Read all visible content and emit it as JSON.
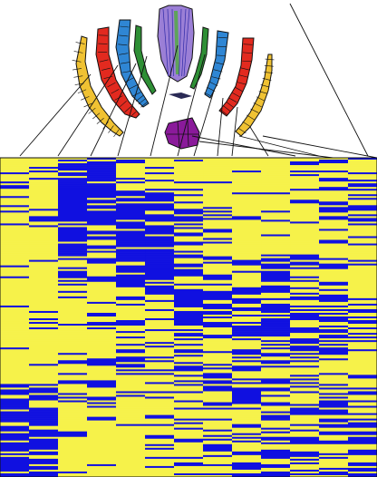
{
  "colors": {
    "background": "#ffffff",
    "outline": "#111111",
    "heat_high": "#1010e0",
    "heat_low": "#f6f24a",
    "stele": "#9b7fd6",
    "stele_center": "#5fa35a",
    "stele_edge": "#2f2aa8",
    "endodermis": "#2e8f35",
    "cortex": "#2f86d4",
    "epidermis": "#e22a1f",
    "root_cap": "#f0c233",
    "quiescent_center": "#8a1a9a",
    "qc_marker": "#2a2a55"
  },
  "heatmap": {
    "columns": 13,
    "rows": 175,
    "column_patterns": [
      {
        "blocks": [
          [
            0.0,
            0.22,
            0.12
          ],
          [
            0.22,
            0.45,
            0.1
          ],
          [
            0.45,
            0.7,
            0.05
          ],
          [
            0.7,
            0.82,
            0.75
          ],
          [
            0.82,
            1.0,
            0.8
          ]
        ]
      },
      {
        "blocks": [
          [
            0.0,
            0.22,
            0.1
          ],
          [
            0.22,
            0.45,
            0.08
          ],
          [
            0.45,
            0.7,
            0.05
          ],
          [
            0.7,
            0.82,
            0.7
          ],
          [
            0.82,
            1.0,
            0.78
          ]
        ]
      },
      {
        "blocks": [
          [
            0.0,
            0.3,
            0.9
          ],
          [
            0.3,
            0.55,
            0.15
          ],
          [
            0.55,
            0.75,
            0.3
          ],
          [
            0.75,
            1.0,
            0.1
          ]
        ]
      },
      {
        "blocks": [
          [
            0.0,
            0.12,
            0.88
          ],
          [
            0.12,
            0.35,
            0.55
          ],
          [
            0.35,
            0.6,
            0.2
          ],
          [
            0.6,
            0.8,
            0.35
          ],
          [
            0.8,
            1.0,
            0.1
          ]
        ]
      },
      {
        "blocks": [
          [
            0.0,
            0.1,
            0.3
          ],
          [
            0.1,
            0.4,
            0.8
          ],
          [
            0.4,
            0.7,
            0.35
          ],
          [
            0.7,
            1.0,
            0.12
          ]
        ]
      },
      {
        "blocks": [
          [
            0.0,
            0.1,
            0.25
          ],
          [
            0.1,
            0.38,
            0.75
          ],
          [
            0.38,
            0.7,
            0.4
          ],
          [
            0.7,
            1.0,
            0.15
          ]
        ]
      },
      {
        "blocks": [
          [
            0.0,
            0.15,
            0.2
          ],
          [
            0.15,
            0.4,
            0.45
          ],
          [
            0.4,
            0.7,
            0.55
          ],
          [
            0.7,
            1.0,
            0.25
          ]
        ]
      },
      {
        "blocks": [
          [
            0.0,
            0.15,
            0.15
          ],
          [
            0.15,
            0.4,
            0.35
          ],
          [
            0.4,
            0.72,
            0.6
          ],
          [
            0.72,
            1.0,
            0.35
          ]
        ]
      },
      {
        "blocks": [
          [
            0.0,
            0.3,
            0.1
          ],
          [
            0.3,
            0.55,
            0.6
          ],
          [
            0.55,
            0.75,
            0.55
          ],
          [
            0.75,
            1.0,
            0.45
          ]
        ]
      },
      {
        "blocks": [
          [
            0.0,
            0.3,
            0.08
          ],
          [
            0.3,
            0.55,
            0.7
          ],
          [
            0.55,
            0.75,
            0.5
          ],
          [
            0.75,
            1.0,
            0.5
          ]
        ]
      },
      {
        "blocks": [
          [
            0.0,
            0.3,
            0.12
          ],
          [
            0.3,
            0.5,
            0.55
          ],
          [
            0.5,
            0.75,
            0.45
          ],
          [
            0.75,
            1.0,
            0.55
          ]
        ]
      },
      {
        "blocks": [
          [
            0.0,
            0.2,
            0.2
          ],
          [
            0.2,
            0.5,
            0.35
          ],
          [
            0.5,
            0.75,
            0.4
          ],
          [
            0.75,
            1.0,
            0.4
          ]
        ]
      },
      {
        "blocks": [
          [
            0.0,
            0.2,
            0.3
          ],
          [
            0.2,
            0.5,
            0.3
          ],
          [
            0.5,
            0.75,
            0.35
          ],
          [
            0.75,
            1.0,
            0.45
          ]
        ]
      }
    ]
  }
}
